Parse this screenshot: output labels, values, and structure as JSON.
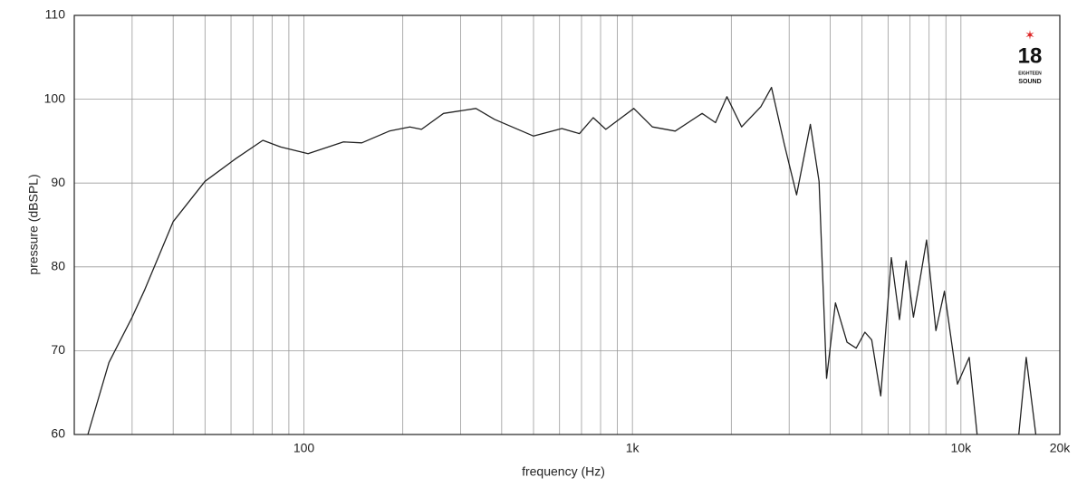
{
  "chart_data": {
    "type": "line",
    "xlabel": "frequency (Hz)",
    "ylabel": "pressure (dBSPL)",
    "xscale": "log",
    "xlim": [
      20,
      20000
    ],
    "ylim": [
      60,
      110
    ],
    "xticks": [
      100,
      {
        "value": 1000,
        "label": "1k"
      },
      {
        "value": 10000,
        "label": "10k"
      },
      {
        "value": 20000,
        "label": "20k"
      }
    ],
    "xminor": [
      30,
      40,
      50,
      60,
      70,
      80,
      90,
      200,
      300,
      400,
      500,
      600,
      700,
      800,
      900,
      2000,
      3000,
      4000,
      5000,
      6000,
      7000,
      8000,
      9000
    ],
    "yticks": [
      60,
      70,
      80,
      90,
      100,
      110
    ],
    "grid": true,
    "series": [
      {
        "color": "#222222",
        "x": [
          22,
          25.5,
          30,
          32.8,
          40,
          50,
          62,
          75,
          85,
          103,
          132,
          150,
          182,
          210,
          228,
          266,
          334,
          380,
          500,
          610,
          690,
          760,
          830,
          1010,
          1150,
          1350,
          1630,
          1790,
          1940,
          2150,
          2460,
          2650,
          2900,
          3160,
          3480,
          3700,
          3900,
          4150,
          4500,
          4800,
          5100,
          5350,
          5700,
          6140,
          6500,
          6810,
          7170,
          7500,
          7860,
          8390,
          8910,
          9760,
          10600,
          11200,
          13000,
          15000,
          15800,
          16900
        ],
        "values": [
          60,
          68.6,
          74,
          77.3,
          85.4,
          90.2,
          92.9,
          95.1,
          94.3,
          93.5,
          94.9,
          94.8,
          96.2,
          96.7,
          96.4,
          98.3,
          98.9,
          97.6,
          95.6,
          96.5,
          95.9,
          97.8,
          96.4,
          98.9,
          96.7,
          96.2,
          98.3,
          97.2,
          100.3,
          96.7,
          99.1,
          101.4,
          94.6,
          88.6,
          97,
          90.2,
          66.7,
          75.7,
          71,
          70.3,
          72.2,
          71.3,
          64.6,
          81.1,
          73.7,
          80.7,
          74,
          78.4,
          83.2,
          72.4,
          77.1,
          66,
          69.2,
          60,
          null,
          60,
          69.2,
          60
        ]
      }
    ]
  },
  "logo": {
    "number": "18",
    "line1": "EIGHTEEN",
    "line2": "SOUND"
  }
}
